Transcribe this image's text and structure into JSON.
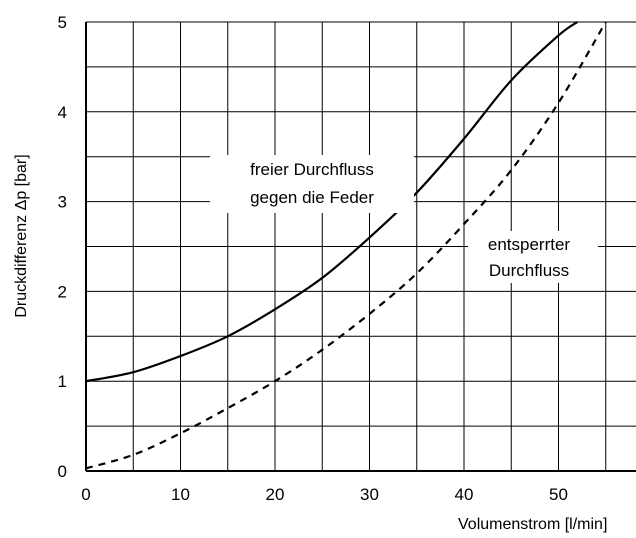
{
  "chart_data": {
    "type": "line",
    "xlabel": "Volumenstrom [l/min]",
    "ylabel": "Druckdifferenz  Δp [bar]",
    "xlim": [
      0,
      58
    ],
    "ylim": [
      0,
      5
    ],
    "x_ticks": [
      0,
      10,
      20,
      30,
      40,
      50
    ],
    "x_tick_labels": [
      "0",
      "10",
      "20",
      "30",
      "40",
      "50"
    ],
    "y_ticks": [
      0,
      1,
      2,
      3,
      4,
      5
    ],
    "y_tick_labels": [
      "0",
      "1",
      "2",
      "3",
      "4",
      "5"
    ],
    "grid": true,
    "annotations": [
      {
        "id": "solid",
        "lines": [
          "freier  Durchfluss",
          "gegen  die  Feder"
        ]
      },
      {
        "id": "dashed",
        "lines": [
          "entsperrter",
          "Durchfluss"
        ]
      }
    ],
    "series": [
      {
        "style": "solid",
        "color": "#000000",
        "x": [
          0,
          5,
          10,
          15,
          20,
          25,
          30,
          35,
          40,
          45,
          50,
          52
        ],
        "y": [
          1.0,
          1.1,
          1.28,
          1.5,
          1.8,
          2.15,
          2.6,
          3.1,
          3.7,
          4.35,
          4.85,
          5.0
        ]
      },
      {
        "style": "dashed",
        "color": "#000000",
        "x": [
          0,
          5,
          10,
          15,
          20,
          25,
          30,
          35,
          40,
          45,
          50,
          55
        ],
        "y": [
          0.03,
          0.18,
          0.42,
          0.7,
          1.0,
          1.35,
          1.75,
          2.2,
          2.75,
          3.35,
          4.1,
          5.0
        ]
      }
    ]
  }
}
